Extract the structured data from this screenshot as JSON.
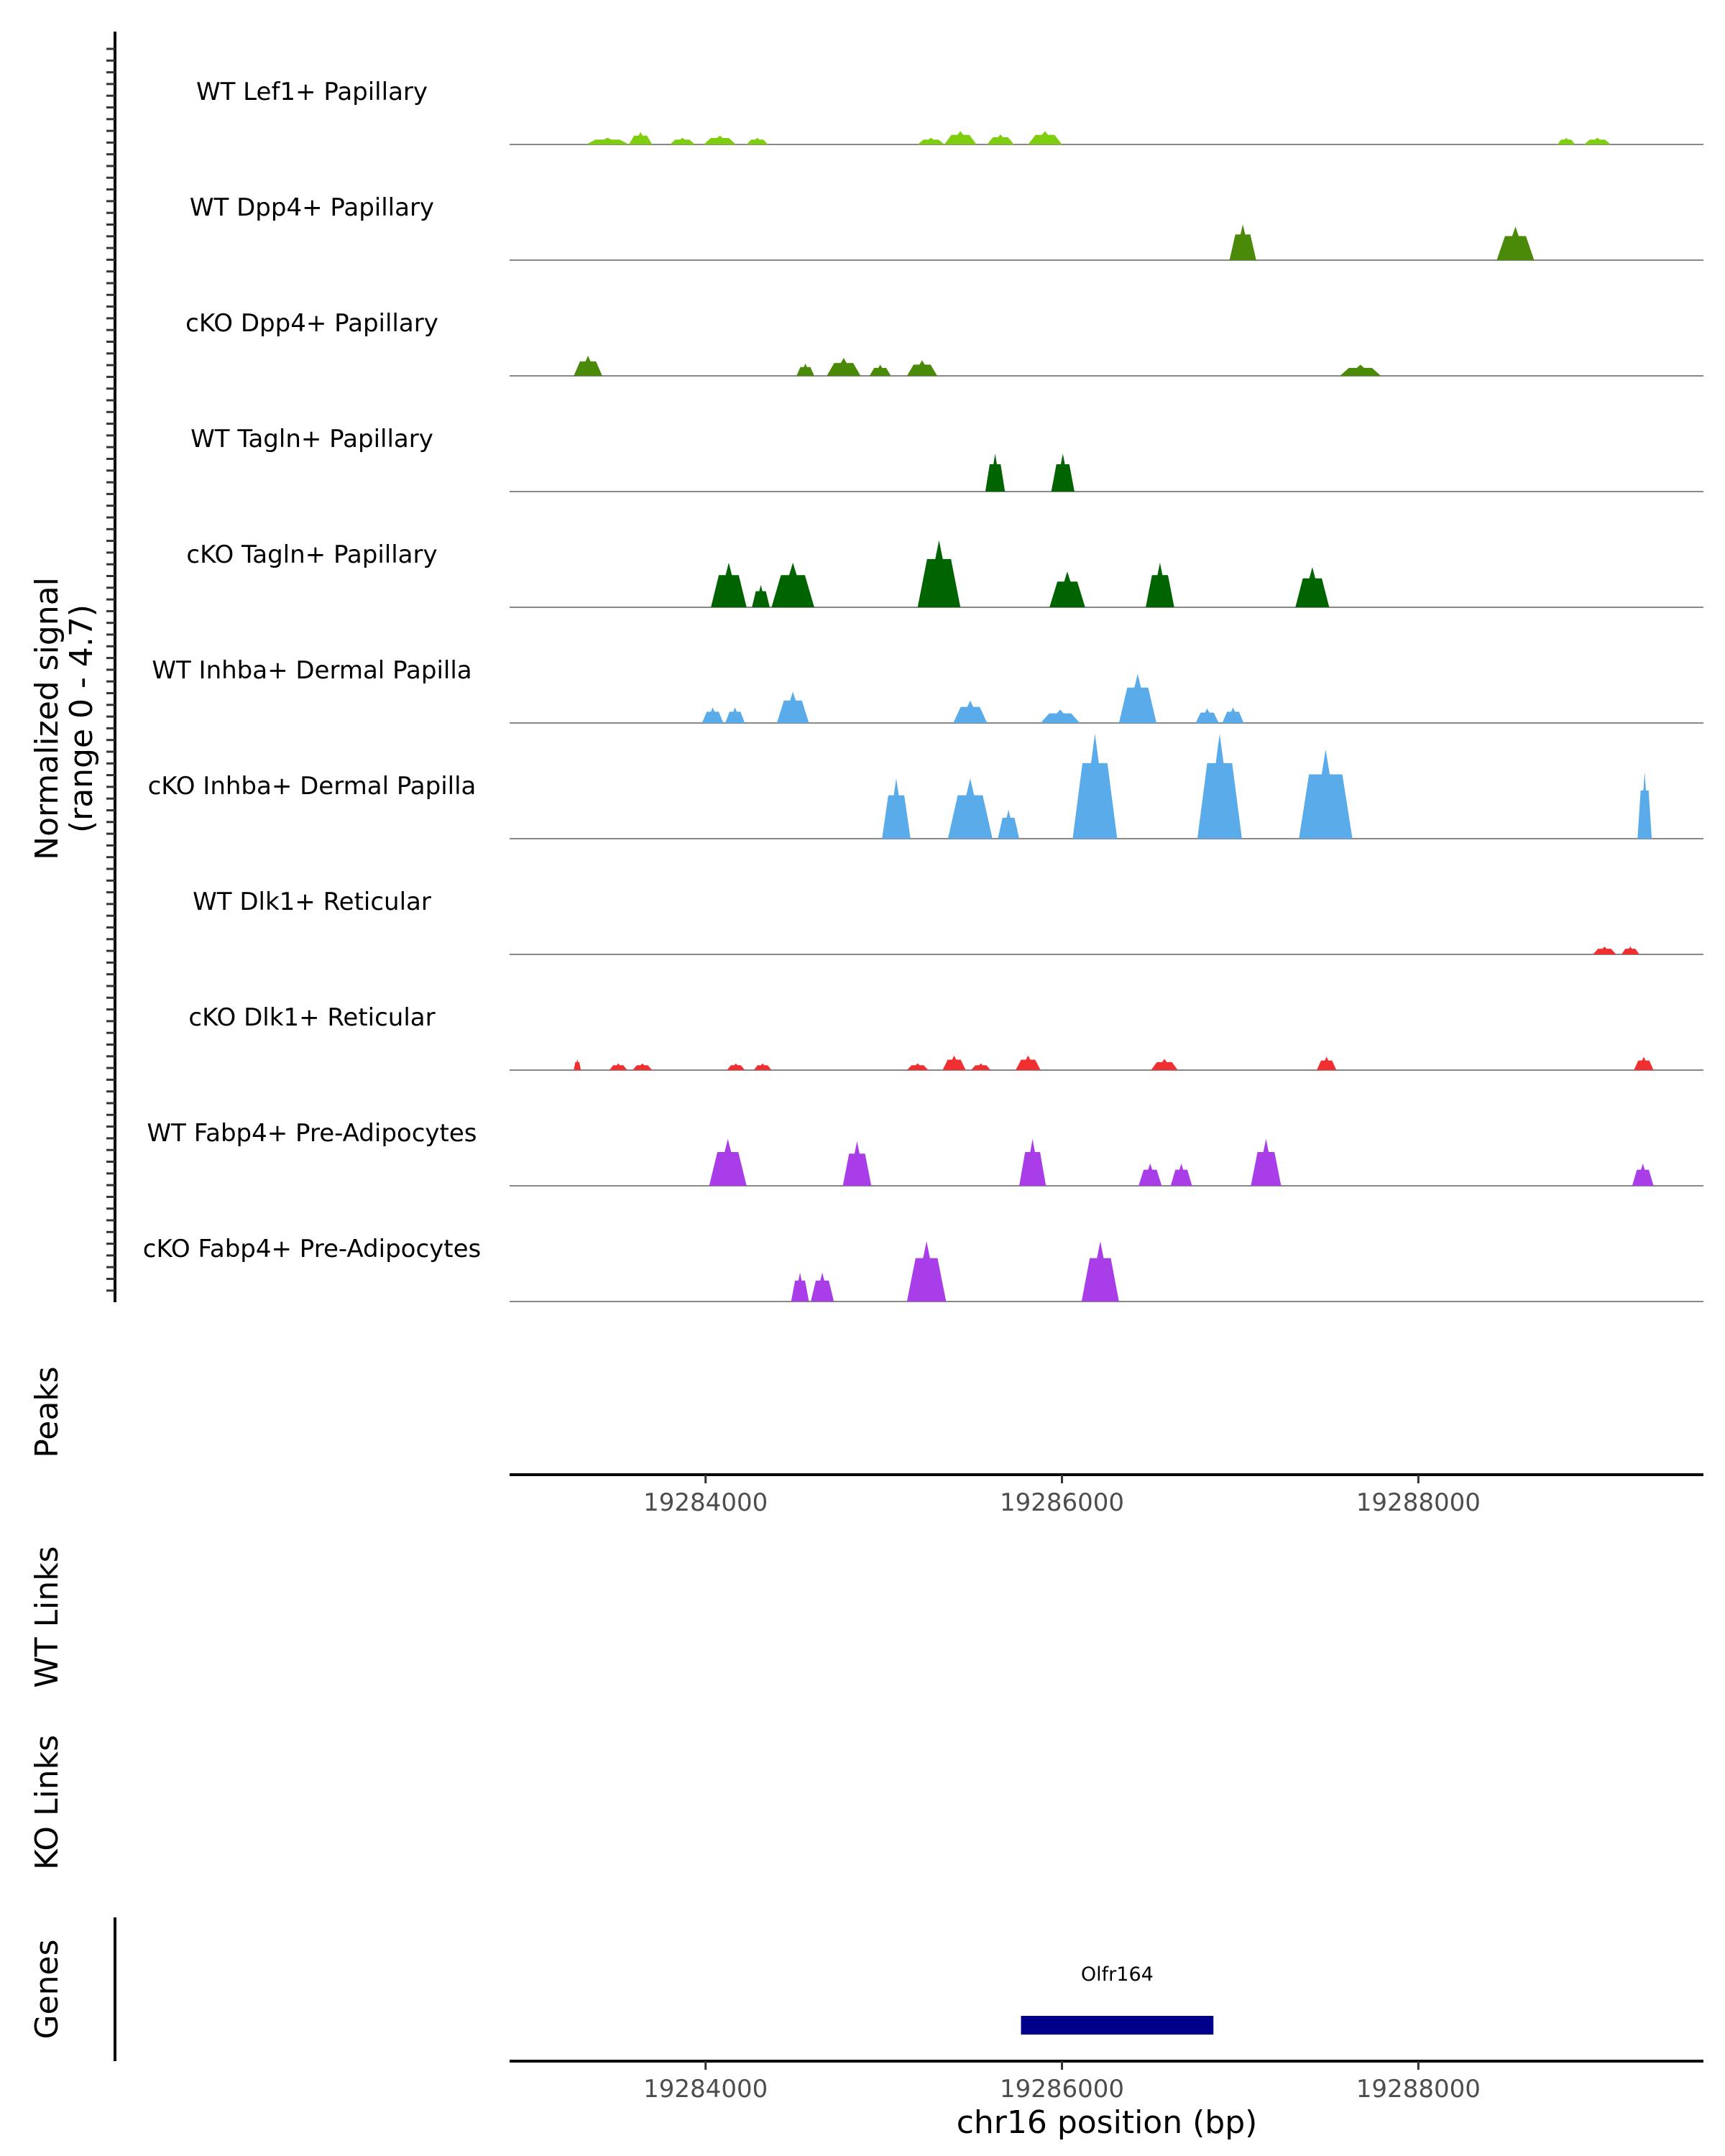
{
  "chart_data": {
    "type": "area",
    "title": "",
    "xlabel": "chr16 position (bp)",
    "ylabel": "Normalized signal",
    "ylabel_range": "(range 0 - 4.7)",
    "xlim": [
      19282900,
      19289600
    ],
    "ylim": [
      0,
      4.7
    ],
    "x_ticks": [
      19284000,
      19286000,
      19288000
    ],
    "x_tick_labels": [
      "19284000",
      "19286000",
      "19288000"
    ],
    "tracks": [
      {
        "name": "WT Lef1+ Papillary",
        "color": "#7fcd0f",
        "peaks": [
          {
            "start": 19283330,
            "end": 19283570,
            "value": 0.3
          },
          {
            "start": 19283570,
            "end": 19283700,
            "value": 0.55
          },
          {
            "start": 19283800,
            "end": 19283940,
            "value": 0.3
          },
          {
            "start": 19283990,
            "end": 19284170,
            "value": 0.4
          },
          {
            "start": 19284230,
            "end": 19284350,
            "value": 0.3
          },
          {
            "start": 19285190,
            "end": 19285340,
            "value": 0.3
          },
          {
            "start": 19285340,
            "end": 19285520,
            "value": 0.6
          },
          {
            "start": 19285580,
            "end": 19285730,
            "value": 0.45
          },
          {
            "start": 19285810,
            "end": 19286000,
            "value": 0.6
          },
          {
            "start": 19288780,
            "end": 19288880,
            "value": 0.3
          },
          {
            "start": 19288930,
            "end": 19289080,
            "value": 0.3
          }
        ]
      },
      {
        "name": "WT Dpp4+ Papillary",
        "color": "#4a8a08",
        "peaks": [
          {
            "start": 19286940,
            "end": 19287090,
            "value": 1.6
          },
          {
            "start": 19288440,
            "end": 19288650,
            "value": 1.5
          }
        ]
      },
      {
        "name": "cKO Dpp4+ Papillary",
        "color": "#4a8a08",
        "peaks": [
          {
            "start": 19283260,
            "end": 19283420,
            "value": 0.9
          },
          {
            "start": 19284510,
            "end": 19284610,
            "value": 0.55
          },
          {
            "start": 19284680,
            "end": 19284870,
            "value": 0.8
          },
          {
            "start": 19284920,
            "end": 19285040,
            "value": 0.5
          },
          {
            "start": 19285130,
            "end": 19285300,
            "value": 0.7
          },
          {
            "start": 19287560,
            "end": 19287790,
            "value": 0.5
          }
        ]
      },
      {
        "name": "WT Tagln+ Papillary",
        "color": "#006400",
        "peaks": [
          {
            "start": 19285570,
            "end": 19285680,
            "value": 1.7
          },
          {
            "start": 19285940,
            "end": 19286070,
            "value": 1.7
          }
        ]
      },
      {
        "name": "cKO Tagln+ Papillary",
        "color": "#006400",
        "peaks": [
          {
            "start": 19284030,
            "end": 19284230,
            "value": 2.0
          },
          {
            "start": 19284260,
            "end": 19284360,
            "value": 1.0
          },
          {
            "start": 19284370,
            "end": 19284610,
            "value": 2.0
          },
          {
            "start": 19285190,
            "end": 19285430,
            "value": 3.0
          },
          {
            "start": 19285930,
            "end": 19286130,
            "value": 1.6
          },
          {
            "start": 19286470,
            "end": 19286630,
            "value": 2.0
          },
          {
            "start": 19287310,
            "end": 19287500,
            "value": 1.8
          }
        ]
      },
      {
        "name": "WT Inhba+ Dermal Papilla",
        "color": "#5aabea",
        "peaks": [
          {
            "start": 19283980,
            "end": 19284100,
            "value": 0.7
          },
          {
            "start": 19284110,
            "end": 19284220,
            "value": 0.7
          },
          {
            "start": 19284400,
            "end": 19284580,
            "value": 1.4
          },
          {
            "start": 19285390,
            "end": 19285580,
            "value": 1.0
          },
          {
            "start": 19285880,
            "end": 19286100,
            "value": 0.6
          },
          {
            "start": 19286320,
            "end": 19286530,
            "value": 2.2
          },
          {
            "start": 19286750,
            "end": 19286880,
            "value": 0.65
          },
          {
            "start": 19286900,
            "end": 19287020,
            "value": 0.7
          }
        ]
      },
      {
        "name": "cKO Inhba+ Dermal Papilla",
        "color": "#5aabea",
        "peaks": [
          {
            "start": 19284990,
            "end": 19285150,
            "value": 2.7
          },
          {
            "start": 19285360,
            "end": 19285610,
            "value": 2.7
          },
          {
            "start": 19285640,
            "end": 19285760,
            "value": 1.3
          },
          {
            "start": 19286060,
            "end": 19286310,
            "value": 4.7
          },
          {
            "start": 19286760,
            "end": 19287010,
            "value": 4.7
          },
          {
            "start": 19287330,
            "end": 19287630,
            "value": 4.0
          },
          {
            "start": 19289230,
            "end": 19289310,
            "value": 3.0
          }
        ]
      },
      {
        "name": "WT Dlk1+ Reticular",
        "color": "#f03030",
        "peaks": [
          {
            "start": 19288980,
            "end": 19289110,
            "value": 0.35
          },
          {
            "start": 19289140,
            "end": 19289240,
            "value": 0.35
          }
        ]
      },
      {
        "name": "cKO Dlk1+ Reticular",
        "color": "#f03030",
        "peaks": [
          {
            "start": 19283260,
            "end": 19283300,
            "value": 0.5
          },
          {
            "start": 19283460,
            "end": 19283560,
            "value": 0.3
          },
          {
            "start": 19283590,
            "end": 19283700,
            "value": 0.3
          },
          {
            "start": 19284120,
            "end": 19284220,
            "value": 0.3
          },
          {
            "start": 19284270,
            "end": 19284370,
            "value": 0.3
          },
          {
            "start": 19285130,
            "end": 19285250,
            "value": 0.3
          },
          {
            "start": 19285330,
            "end": 19285460,
            "value": 0.65
          },
          {
            "start": 19285490,
            "end": 19285600,
            "value": 0.3
          },
          {
            "start": 19285740,
            "end": 19285880,
            "value": 0.65
          },
          {
            "start": 19286500,
            "end": 19286650,
            "value": 0.5
          },
          {
            "start": 19287430,
            "end": 19287540,
            "value": 0.6
          },
          {
            "start": 19289210,
            "end": 19289320,
            "value": 0.6
          }
        ]
      },
      {
        "name": "WT Fabp4+ Pre-Adipocytes",
        "color": "#a93ee8",
        "peaks": [
          {
            "start": 19284020,
            "end": 19284230,
            "value": 2.1
          },
          {
            "start": 19284770,
            "end": 19284930,
            "value": 2.0
          },
          {
            "start": 19285760,
            "end": 19285910,
            "value": 2.1
          },
          {
            "start": 19286430,
            "end": 19286560,
            "value": 1.0
          },
          {
            "start": 19286610,
            "end": 19286730,
            "value": 1.0
          },
          {
            "start": 19287060,
            "end": 19287230,
            "value": 2.1
          },
          {
            "start": 19289200,
            "end": 19289320,
            "value": 1.0
          }
        ]
      },
      {
        "name": "cKO Fabp4+ Pre-Adipocytes",
        "color": "#a93ee8",
        "peaks": [
          {
            "start": 19284480,
            "end": 19284580,
            "value": 1.3
          },
          {
            "start": 19284590,
            "end": 19284720,
            "value": 1.3
          },
          {
            "start": 19285130,
            "end": 19285350,
            "value": 2.7
          },
          {
            "start": 19286110,
            "end": 19286320,
            "value": 2.7
          }
        ]
      }
    ],
    "side_labels": [
      "Peaks",
      "WT Links",
      "KO Links",
      "Genes"
    ],
    "genes": [
      {
        "name": "Olfr164",
        "start": 19285770,
        "end": 19286850,
        "color": "#00008b"
      }
    ]
  }
}
